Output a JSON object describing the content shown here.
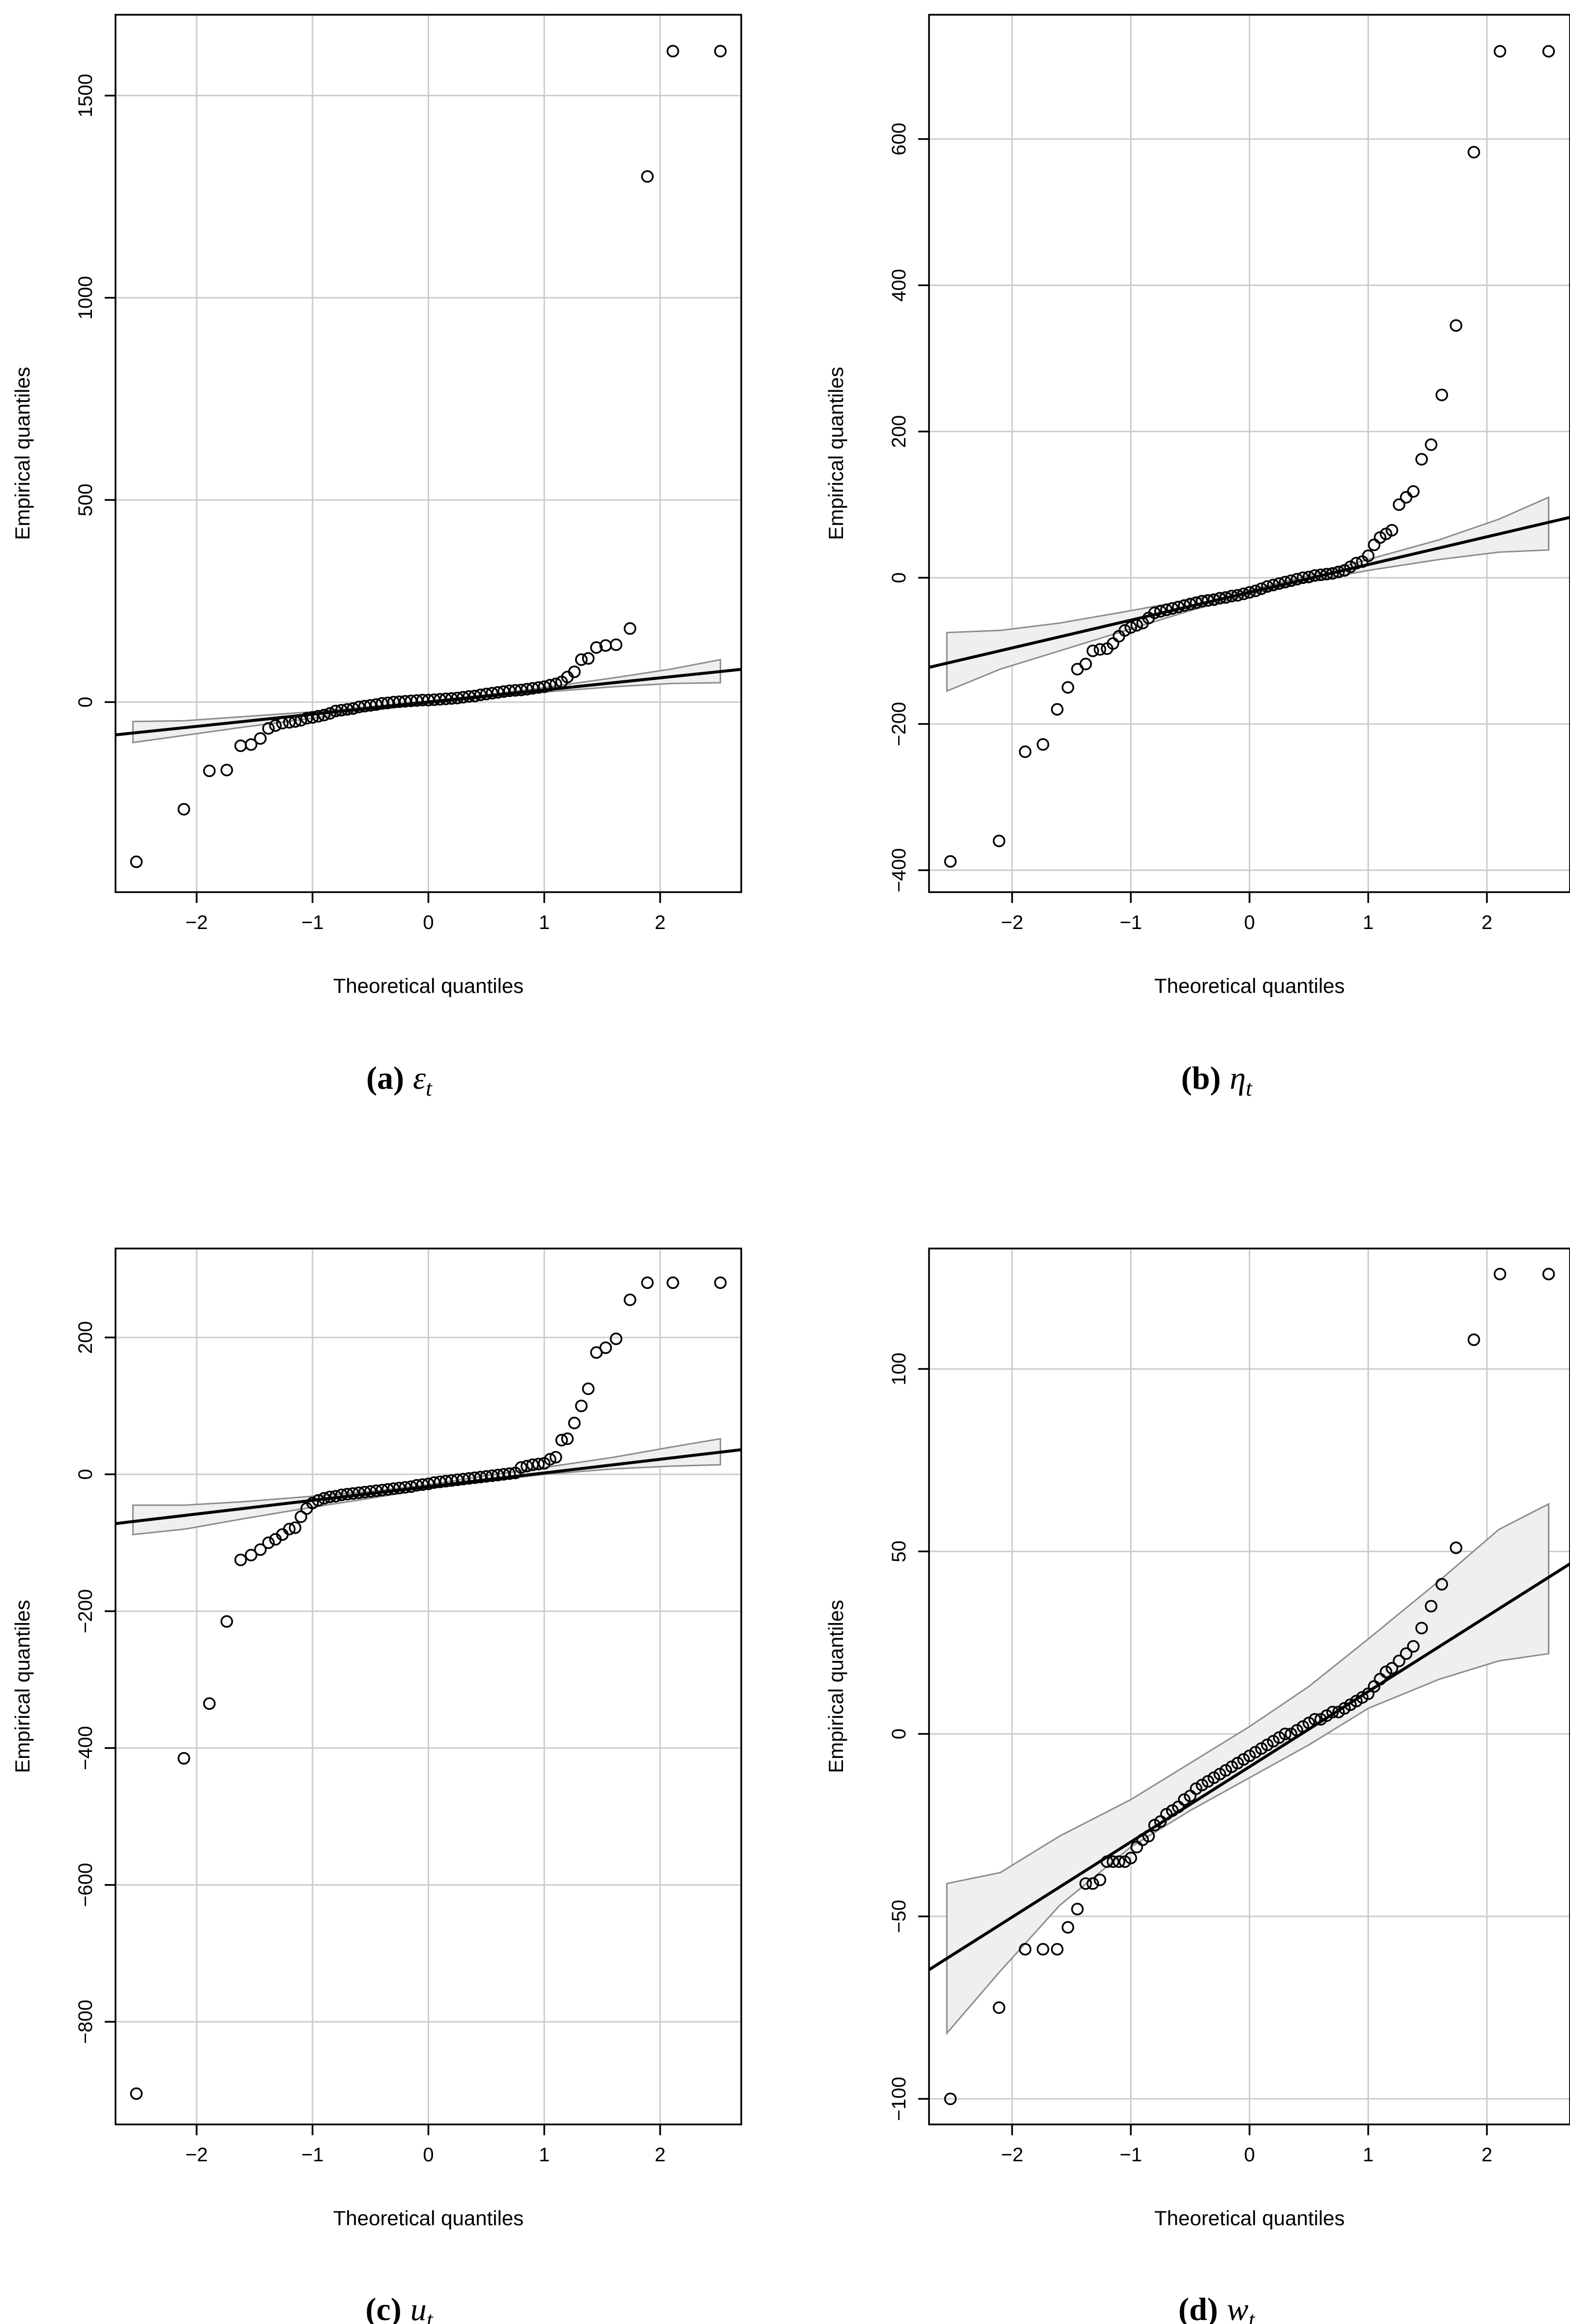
{
  "chart_data": [
    {
      "id": "a",
      "type": "scatter",
      "subtype": "qq-plot",
      "caption": {
        "label": "(a)",
        "symbol": "ε",
        "subscript": "t"
      },
      "xlabel": "Theoretical quantiles",
      "ylabel": "Empirical quantiles",
      "xlim": [
        -2.7,
        2.7
      ],
      "ylim": [
        -470,
        1700
      ],
      "xticks": [
        -2,
        -1,
        0,
        1,
        2
      ],
      "yticks": [
        0,
        500,
        1000,
        1500
      ],
      "grid": true,
      "reference_line": {
        "slope": 30,
        "intercept": 0
      },
      "band": {
        "x": [
          -2.55,
          -2.1,
          -1.6,
          -1.0,
          -0.5,
          0,
          0.5,
          1.0,
          1.6,
          2.1,
          2.52
        ],
        "lower": [
          -100,
          -82,
          -62,
          -40,
          -21,
          -3,
          12,
          25,
          38,
          46,
          48
        ],
        "upper": [
          -48,
          -46,
          -36,
          -24,
          -11,
          3,
          18,
          36,
          60,
          82,
          105
        ]
      },
      "points": {
        "x": [
          -2.52,
          -2.11,
          -1.89,
          -1.74,
          -1.62,
          -1.53,
          -1.45,
          -1.38,
          -1.32,
          -1.26,
          -1.2,
          -1.15,
          -1.1,
          -1.05,
          -1.0,
          -0.95,
          -0.9,
          -0.85,
          -0.8,
          -0.75,
          -0.7,
          -0.65,
          -0.6,
          -0.55,
          -0.5,
          -0.45,
          -0.4,
          -0.35,
          -0.3,
          -0.25,
          -0.2,
          -0.15,
          -0.1,
          -0.05,
          0.0,
          0.05,
          0.1,
          0.15,
          0.2,
          0.25,
          0.3,
          0.35,
          0.4,
          0.45,
          0.5,
          0.55,
          0.6,
          0.65,
          0.7,
          0.75,
          0.8,
          0.85,
          0.9,
          0.95,
          1.0,
          1.05,
          1.1,
          1.15,
          1.2,
          1.26,
          1.32,
          1.38,
          1.45,
          1.53,
          1.62,
          1.74,
          1.89,
          2.11,
          2.52
        ],
        "y": [
          -395,
          -265,
          -170,
          -168,
          -108,
          -105,
          -90,
          -65,
          -58,
          -52,
          -50,
          -48,
          -45,
          -40,
          -38,
          -35,
          -32,
          -28,
          -22,
          -20,
          -18,
          -16,
          -12,
          -10,
          -8,
          -6,
          -3,
          -2,
          0,
          1,
          2,
          3,
          4,
          5,
          5,
          6,
          7,
          8,
          9,
          10,
          12,
          14,
          15,
          18,
          20,
          22,
          24,
          26,
          28,
          29,
          30,
          32,
          34,
          36,
          38,
          42,
          45,
          50,
          62,
          75,
          105,
          108,
          135,
          140,
          142,
          182,
          1300,
          1610,
          1610
        ]
      }
    },
    {
      "id": "b",
      "type": "scatter",
      "subtype": "qq-plot",
      "caption": {
        "label": "(b)",
        "symbol": "η",
        "subscript": "t"
      },
      "xlabel": "Theoretical quantiles",
      "ylabel": "Empirical quantiles",
      "xlim": [
        -2.7,
        2.7
      ],
      "ylim": [
        -430,
        770
      ],
      "xticks": [
        -2,
        -1,
        0,
        1,
        2
      ],
      "yticks": [
        -400,
        -200,
        0,
        200,
        400,
        600
      ],
      "grid": true,
      "reference_line": {
        "slope": 38,
        "intercept": -20
      },
      "band": {
        "x": [
          -2.55,
          -2.1,
          -1.6,
          -1.0,
          -0.5,
          0,
          0.5,
          1.0,
          1.6,
          2.1,
          2.52
        ],
        "lower": [
          -155,
          -125,
          -100,
          -70,
          -45,
          -23,
          -5,
          10,
          25,
          35,
          38
        ],
        "upper": [
          -75,
          -72,
          -62,
          -45,
          -30,
          -17,
          3,
          25,
          52,
          80,
          110
        ]
      },
      "points": {
        "x": [
          -2.52,
          -2.11,
          -1.89,
          -1.74,
          -1.62,
          -1.53,
          -1.45,
          -1.38,
          -1.32,
          -1.26,
          -1.2,
          -1.15,
          -1.1,
          -1.05,
          -1.0,
          -0.95,
          -0.9,
          -0.85,
          -0.8,
          -0.75,
          -0.7,
          -0.65,
          -0.6,
          -0.55,
          -0.5,
          -0.45,
          -0.4,
          -0.35,
          -0.3,
          -0.25,
          -0.2,
          -0.15,
          -0.1,
          -0.05,
          0.0,
          0.05,
          0.1,
          0.15,
          0.2,
          0.25,
          0.3,
          0.35,
          0.4,
          0.45,
          0.5,
          0.55,
          0.6,
          0.65,
          0.7,
          0.75,
          0.8,
          0.85,
          0.9,
          0.95,
          1.0,
          1.05,
          1.1,
          1.15,
          1.2,
          1.26,
          1.32,
          1.38,
          1.45,
          1.53,
          1.62,
          1.74,
          1.89,
          2.11,
          2.52
        ],
        "y": [
          -388,
          -360,
          -238,
          -228,
          -180,
          -150,
          -125,
          -118,
          -100,
          -98,
          -97,
          -90,
          -80,
          -72,
          -68,
          -65,
          -62,
          -55,
          -48,
          -46,
          -44,
          -42,
          -40,
          -38,
          -36,
          -34,
          -32,
          -31,
          -30,
          -28,
          -27,
          -25,
          -24,
          -22,
          -20,
          -18,
          -15,
          -12,
          -10,
          -8,
          -6,
          -4,
          -2,
          0,
          1,
          3,
          4,
          5,
          6,
          8,
          10,
          15,
          20,
          22,
          30,
          45,
          55,
          60,
          65,
          100,
          110,
          118,
          162,
          182,
          250,
          345,
          582,
          720,
          720
        ]
      }
    },
    {
      "id": "c",
      "type": "scatter",
      "subtype": "qq-plot",
      "caption": {
        "label": "(c)",
        "symbol": "u",
        "subscript": "t"
      },
      "xlabel": "Theoretical quantiles",
      "ylabel": "Empirical quantiles",
      "xlim": [
        -2.7,
        2.7
      ],
      "ylim": [
        -950,
        330
      ],
      "xticks": [
        -2,
        -1,
        0,
        1,
        2
      ],
      "yticks": [
        -800,
        -600,
        -400,
        -200,
        0,
        200
      ],
      "grid": true,
      "reference_line": {
        "slope": 20,
        "intercept": -18
      },
      "band": {
        "x": [
          -2.55,
          -2.1,
          -1.6,
          -1.0,
          -0.5,
          0,
          0.5,
          1.0,
          1.6,
          2.1,
          2.52
        ],
        "lower": [
          -88,
          -80,
          -65,
          -48,
          -35,
          -21,
          -10,
          0,
          8,
          12,
          14
        ],
        "upper": [
          -45,
          -45,
          -40,
          -32,
          -25,
          -15,
          -2,
          10,
          25,
          40,
          52
        ]
      },
      "points": {
        "x": [
          -2.52,
          -2.11,
          -1.89,
          -1.74,
          -1.62,
          -1.53,
          -1.45,
          -1.38,
          -1.32,
          -1.26,
          -1.2,
          -1.15,
          -1.1,
          -1.05,
          -1.0,
          -0.95,
          -0.9,
          -0.85,
          -0.8,
          -0.75,
          -0.7,
          -0.65,
          -0.6,
          -0.55,
          -0.5,
          -0.45,
          -0.4,
          -0.35,
          -0.3,
          -0.25,
          -0.2,
          -0.15,
          -0.1,
          -0.05,
          0.0,
          0.05,
          0.1,
          0.15,
          0.2,
          0.25,
          0.3,
          0.35,
          0.4,
          0.45,
          0.5,
          0.55,
          0.6,
          0.65,
          0.7,
          0.75,
          0.8,
          0.85,
          0.9,
          0.95,
          1.0,
          1.05,
          1.1,
          1.15,
          1.2,
          1.26,
          1.32,
          1.38,
          1.45,
          1.53,
          1.62,
          1.74,
          1.89,
          2.11,
          2.52
        ],
        "y": [
          -905,
          -415,
          -335,
          -215,
          -125,
          -118,
          -110,
          -100,
          -95,
          -88,
          -80,
          -78,
          -62,
          -50,
          -42,
          -38,
          -35,
          -33,
          -32,
          -30,
          -29,
          -28,
          -27,
          -26,
          -25,
          -24,
          -23,
          -22,
          -21,
          -20,
          -19,
          -18,
          -16,
          -15,
          -14,
          -12,
          -11,
          -10,
          -9,
          -8,
          -7,
          -6,
          -5,
          -4,
          -3,
          -2,
          -1,
          0,
          1,
          2,
          10,
          12,
          14,
          15,
          16,
          22,
          25,
          50,
          52,
          75,
          100,
          125,
          178,
          185,
          198,
          255,
          280,
          280,
          280
        ]
      }
    },
    {
      "id": "d",
      "type": "scatter",
      "subtype": "qq-plot",
      "caption": {
        "label": "(d)",
        "symbol": "w",
        "subscript": "t"
      },
      "xlabel": "Theoretical quantiles",
      "ylabel": "Empirical quantiles",
      "xlim": [
        -2.7,
        2.7
      ],
      "ylim": [
        -107,
        133
      ],
      "xticks": [
        -2,
        -1,
        0,
        1,
        2
      ],
      "yticks": [
        -100,
        -50,
        0,
        50,
        100
      ],
      "grid": true,
      "reference_line": {
        "slope": 20.6,
        "intercept": -9
      },
      "band": {
        "x": [
          -2.55,
          -2.1,
          -1.6,
          -1.0,
          -0.5,
          0,
          0.5,
          1.0,
          1.6,
          2.1,
          2.52
        ],
        "lower": [
          -82,
          -65,
          -47,
          -31,
          -21,
          -12,
          -3,
          7,
          15,
          20,
          22
        ],
        "upper": [
          -41,
          -38,
          -28,
          -18,
          -8,
          2,
          13,
          26,
          42,
          56,
          63
        ]
      },
      "points": {
        "x": [
          -2.52,
          -2.11,
          -1.89,
          -1.74,
          -1.62,
          -1.53,
          -1.45,
          -1.38,
          -1.32,
          -1.26,
          -1.2,
          -1.15,
          -1.1,
          -1.05,
          -1.0,
          -0.95,
          -0.9,
          -0.85,
          -0.8,
          -0.75,
          -0.7,
          -0.65,
          -0.6,
          -0.55,
          -0.5,
          -0.45,
          -0.4,
          -0.35,
          -0.3,
          -0.25,
          -0.2,
          -0.15,
          -0.1,
          -0.05,
          0.0,
          0.05,
          0.1,
          0.15,
          0.2,
          0.25,
          0.3,
          0.35,
          0.4,
          0.45,
          0.5,
          0.55,
          0.6,
          0.65,
          0.7,
          0.75,
          0.8,
          0.85,
          0.9,
          0.95,
          1.0,
          1.05,
          1.1,
          1.15,
          1.2,
          1.26,
          1.32,
          1.38,
          1.45,
          1.53,
          1.62,
          1.74,
          1.89,
          2.11,
          2.52
        ],
        "y": [
          -100,
          -75,
          -59,
          -59,
          -59,
          -53,
          -48,
          -41,
          -41,
          -40,
          -35,
          -35,
          -35,
          -35,
          -34,
          -31,
          -29,
          -28,
          -25,
          -24,
          -22,
          -21,
          -20,
          -18,
          -17,
          -15,
          -14,
          -13,
          -12,
          -11,
          -10,
          -9,
          -8,
          -7,
          -6,
          -5,
          -4,
          -3,
          -2,
          -1,
          0,
          0,
          1,
          2,
          3,
          4,
          4,
          5,
          6,
          6,
          7,
          8,
          9,
          10,
          11,
          13,
          15,
          17,
          18,
          20,
          22,
          24,
          29,
          35,
          41,
          51,
          108,
          126,
          126
        ]
      }
    }
  ]
}
